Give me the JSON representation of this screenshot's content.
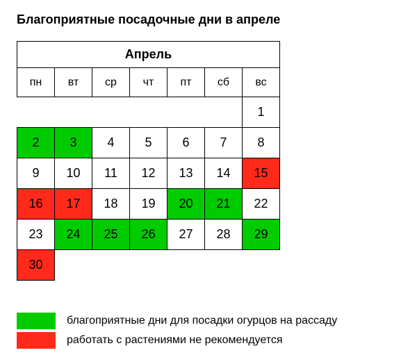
{
  "title": "Благоприятные посадочные дни в апреле",
  "month": "Апрель",
  "dow": [
    "пн",
    "вт",
    "ср",
    "чт",
    "пт",
    "сб",
    "вс"
  ],
  "colors": {
    "good": "#00cc00",
    "bad": "#ff2a1a",
    "default": "#ffffff",
    "text": "#000000"
  },
  "weeks": [
    [
      null,
      null,
      null,
      null,
      null,
      null,
      {
        "d": 1
      }
    ],
    [
      {
        "d": 2,
        "c": "good"
      },
      {
        "d": 3,
        "c": "good"
      },
      {
        "d": 4
      },
      {
        "d": 5
      },
      {
        "d": 6
      },
      {
        "d": 7
      },
      {
        "d": 8
      }
    ],
    [
      {
        "d": 9
      },
      {
        "d": 10
      },
      {
        "d": 11
      },
      {
        "d": 12
      },
      {
        "d": 13
      },
      {
        "d": 14
      },
      {
        "d": 15,
        "c": "bad"
      }
    ],
    [
      {
        "d": 16,
        "c": "bad"
      },
      {
        "d": 17,
        "c": "bad"
      },
      {
        "d": 18
      },
      {
        "d": 19
      },
      {
        "d": 20,
        "c": "good"
      },
      {
        "d": 21,
        "c": "good"
      },
      {
        "d": 22
      }
    ],
    [
      {
        "d": 23
      },
      {
        "d": 24,
        "c": "good"
      },
      {
        "d": 25,
        "c": "good"
      },
      {
        "d": 26,
        "c": "good"
      },
      {
        "d": 27
      },
      {
        "d": 28
      },
      {
        "d": 29,
        "c": "good"
      }
    ],
    [
      {
        "d": 30,
        "c": "bad"
      },
      null,
      null,
      null,
      null,
      null,
      null
    ]
  ],
  "legend": [
    {
      "color": "good",
      "label": "благоприятные дни для посадки огурцов на рассаду"
    },
    {
      "color": "bad",
      "label": "работать с растениями не рекомендуется"
    }
  ]
}
